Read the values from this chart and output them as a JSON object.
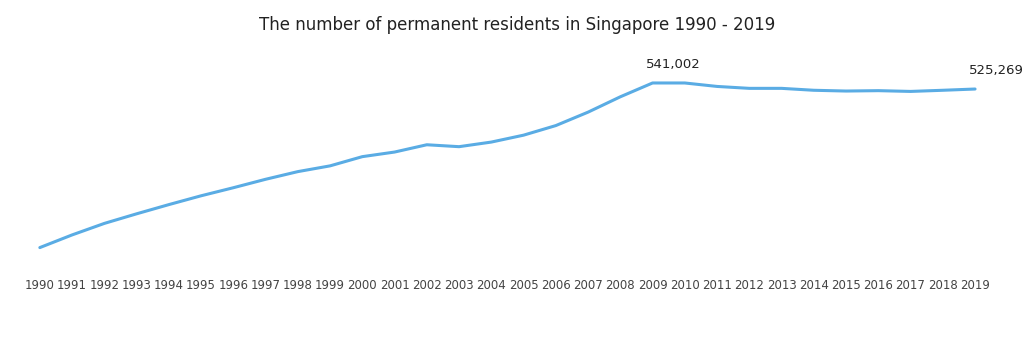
{
  "title": "The number of permanent residents in Singapore 1990 - 2019",
  "years": [
    1990,
    1991,
    1992,
    1993,
    1994,
    1995,
    1996,
    1997,
    1998,
    1999,
    2000,
    2001,
    2002,
    2003,
    2004,
    2005,
    2006,
    2007,
    2008,
    2009,
    2010,
    2011,
    2012,
    2013,
    2014,
    2015,
    2016,
    2017,
    2018,
    2019
  ],
  "values": [
    112000,
    145000,
    175000,
    200000,
    224000,
    247000,
    268000,
    290000,
    310000,
    325000,
    349000,
    361000,
    380000,
    375000,
    387000,
    405000,
    430000,
    465000,
    505000,
    541002,
    541000,
    532000,
    527000,
    527000,
    522000,
    520000,
    521000,
    519000,
    522000,
    525269
  ],
  "line_color": "#5aace4",
  "line_width": 2.2,
  "annotation_2009": {
    "year": 2009,
    "value": 541002,
    "label": "541,002"
  },
  "annotation_2019": {
    "year": 2019,
    "value": 525269,
    "label": "525,269"
  },
  "background_color": "#ffffff",
  "title_fontsize": 12,
  "tick_fontsize": 8.5,
  "annotation_fontsize": 9.5,
  "ylim": [
    60000,
    650000
  ],
  "xlim": [
    1989.4,
    2020.2
  ]
}
